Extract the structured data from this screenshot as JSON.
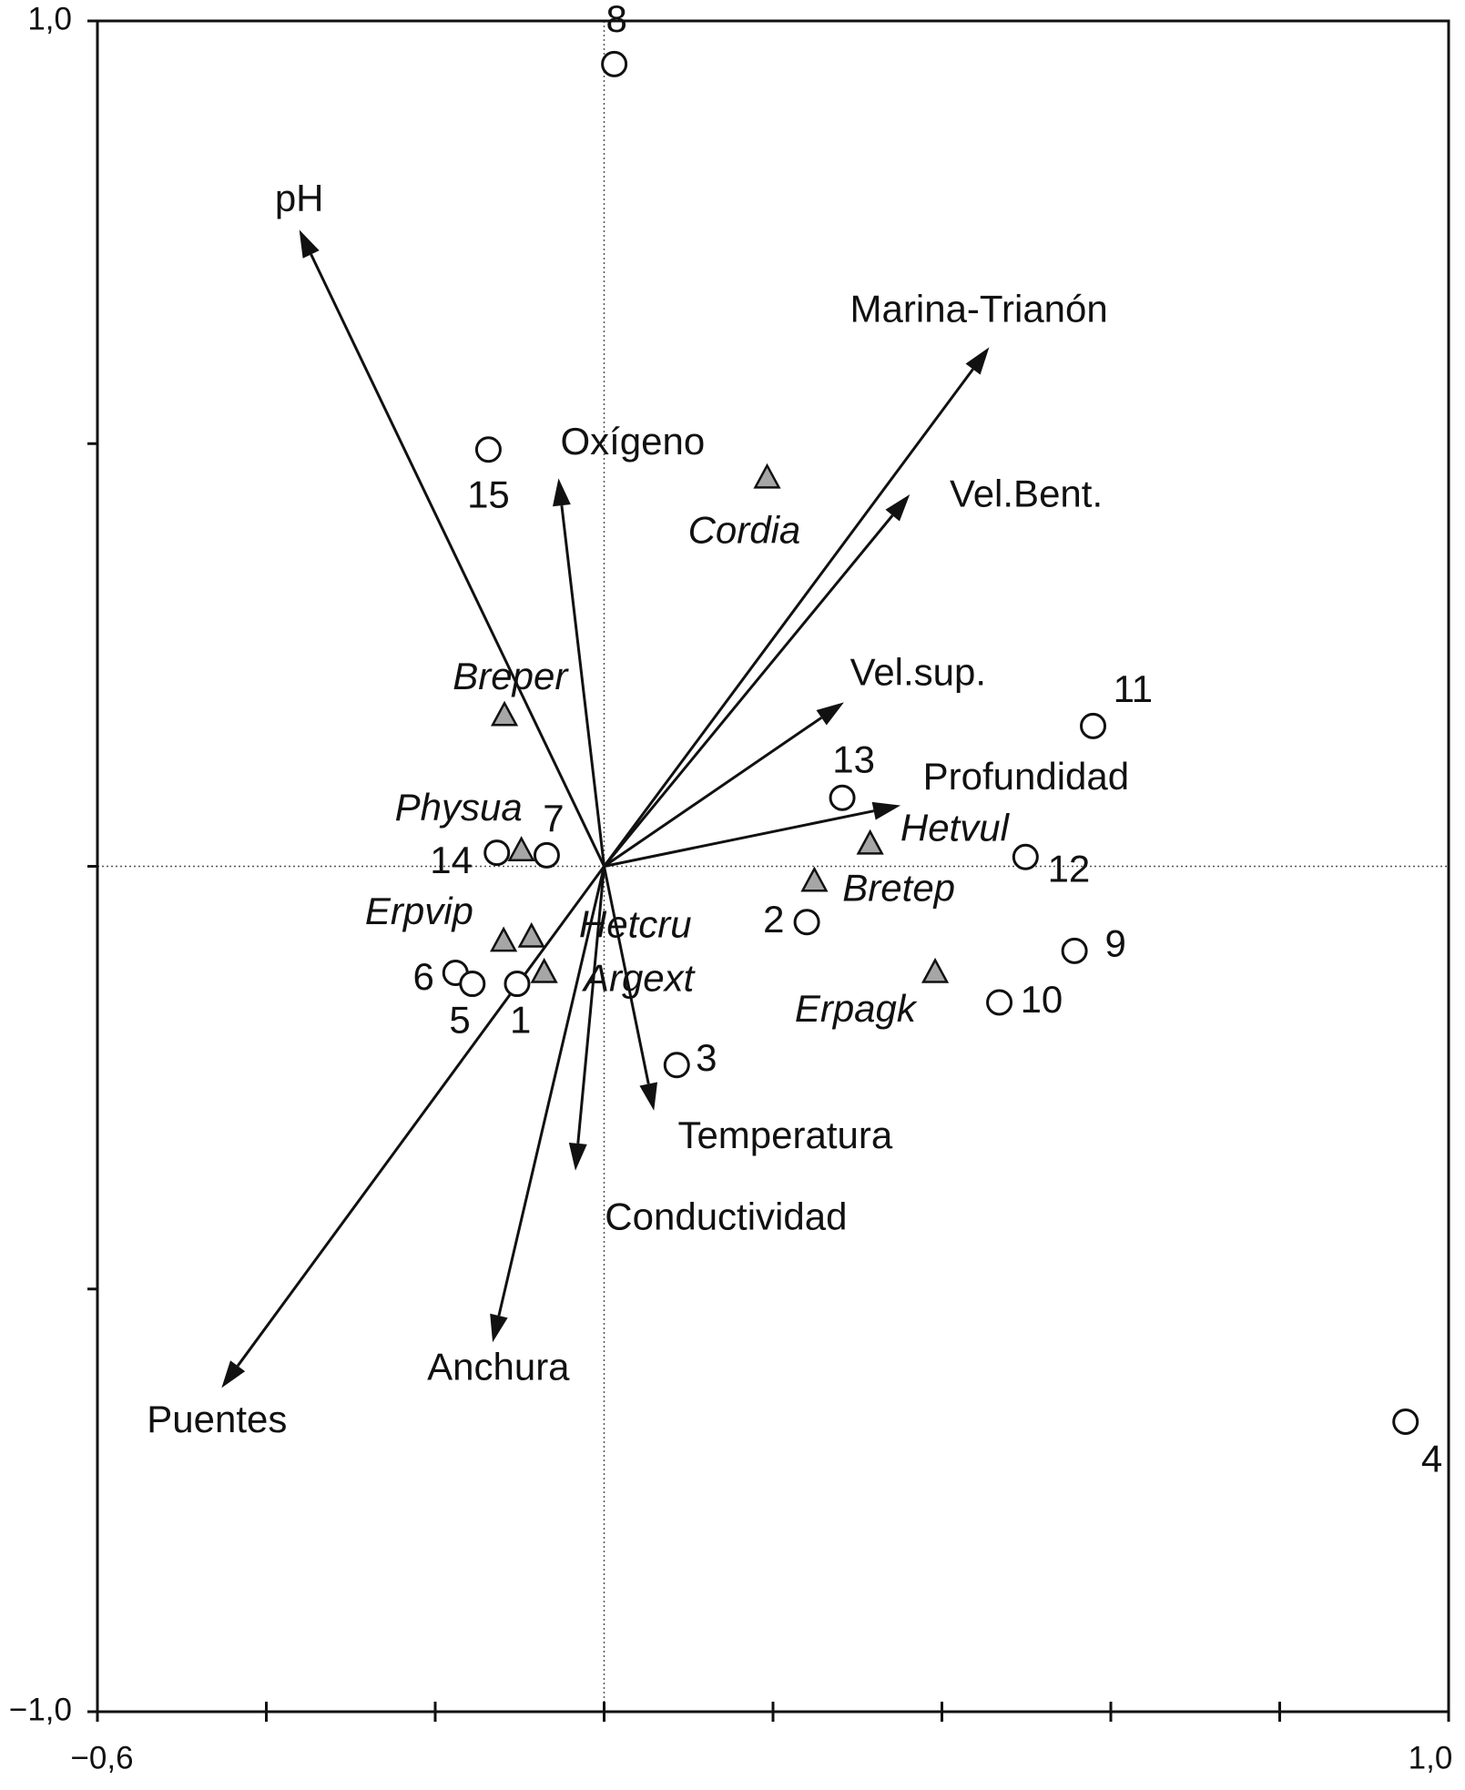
{
  "chart_data": {
    "type": "biplot",
    "xlim": [
      -0.6,
      1.0
    ],
    "ylim": [
      -1.0,
      1.0
    ],
    "xticks": [
      {
        "value": -0.6,
        "label": "−0,6"
      },
      {
        "value": -0.4,
        "label": null
      },
      {
        "value": -0.2,
        "label": null
      },
      {
        "value": 0,
        "label": null
      },
      {
        "value": 0.2,
        "label": null
      },
      {
        "value": 0.4,
        "label": null
      },
      {
        "value": 0.6,
        "label": null
      },
      {
        "value": 0.8,
        "label": null
      },
      {
        "value": 1.0,
        "label": "1,0"
      }
    ],
    "yticks": [
      {
        "value": -1.0,
        "label": "−1,0"
      },
      {
        "value": -0.5,
        "label": null
      },
      {
        "value": 0,
        "label": null
      },
      {
        "value": 0.5,
        "label": null
      },
      {
        "value": 1.0,
        "label": "1,0"
      }
    ],
    "zero_lines": true,
    "series": [
      {
        "marker": "circle",
        "color": "#ffffff",
        "italic": false,
        "labels": [
          "8",
          "15",
          "11",
          "13",
          "14",
          "7",
          "12",
          "2",
          "9",
          "6",
          "5",
          "1",
          "10",
          "3",
          "4"
        ],
        "x": [
          0.012,
          -0.137,
          0.579,
          0.282,
          -0.127,
          -0.068,
          0.499,
          0.24,
          0.557,
          -0.176,
          -0.156,
          -0.103,
          0.468,
          0.086,
          0.949
        ],
        "y": [
          0.949,
          0.493,
          0.166,
          0.081,
          0.016,
          0.013,
          0.011,
          -0.066,
          -0.1,
          -0.126,
          -0.139,
          -0.139,
          -0.161,
          -0.235,
          -0.657
        ]
      },
      {
        "marker": "triangle",
        "color": "#a6a6a6",
        "italic": true,
        "labels": [
          "Cordia",
          "Breper",
          "Physua",
          "Hetvul",
          "Bretep",
          "Erpvip",
          "Hetcru",
          "Argext",
          "Erpagk"
        ],
        "x": [
          0.193,
          -0.118,
          -0.098,
          0.315,
          0.249,
          -0.119,
          -0.086,
          -0.071,
          0.392
        ],
        "y": [
          0.459,
          0.178,
          0.018,
          0.026,
          -0.018,
          -0.089,
          -0.084,
          -0.126,
          -0.126
        ]
      }
    ],
    "vectors": {
      "color": "#111111",
      "labels": [
        "pH",
        "Marina-Trianón",
        "Vel.Bent.",
        "Oxígeno",
        "Vel.sup.",
        "Profundidad",
        "Temperatura",
        "Conductividad",
        "Anchura",
        "Puentes"
      ],
      "x": [
        -0.361,
        0.456,
        0.362,
        -0.054,
        0.284,
        0.351,
        0.059,
        -0.034,
        -0.132,
        -0.453
      ],
      "y": [
        0.753,
        0.614,
        0.44,
        0.459,
        0.194,
        0.072,
        -0.289,
        -0.36,
        -0.563,
        -0.617
      ]
    }
  }
}
